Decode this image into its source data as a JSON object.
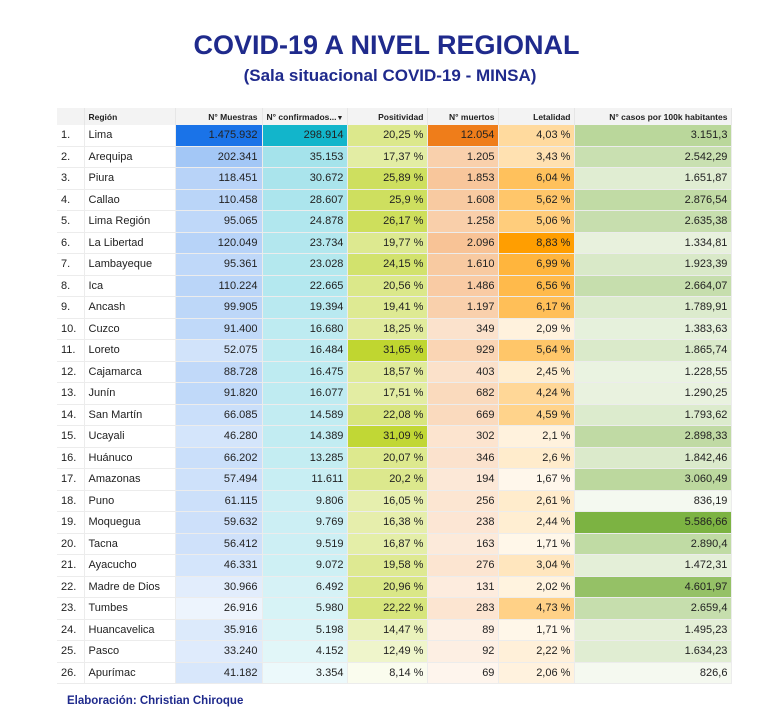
{
  "title": "COVID-19 A NIVEL REGIONAL",
  "subtitle": "(Sala situacional COVID-19 - MINSA)",
  "headers": {
    "region": "Región",
    "muestras": "N° Muestras",
    "confirmados": "N° confirmados...",
    "positividad": "Positividad",
    "muertos": "N° muertos",
    "letalidad": "Letalidad",
    "casos100k": "N° casos por 100k habitantes"
  },
  "rows": [
    {
      "num": "1.",
      "region": "Lima",
      "muestras": "1.475.932",
      "confirmados": "298.914",
      "positividad": "20,25 %",
      "muertos": "12.054",
      "letalidad": "4,03 %",
      "casos100k": "3.151,3"
    },
    {
      "num": "2.",
      "region": "Arequipa",
      "muestras": "202.341",
      "confirmados": "35.153",
      "positividad": "17,37 %",
      "muertos": "1.205",
      "letalidad": "3,43 %",
      "casos100k": "2.542,29"
    },
    {
      "num": "3.",
      "region": "Piura",
      "muestras": "118.451",
      "confirmados": "30.672",
      "positividad": "25,89 %",
      "muertos": "1.853",
      "letalidad": "6,04 %",
      "casos100k": "1.651,87"
    },
    {
      "num": "4.",
      "region": "Callao",
      "muestras": "110.458",
      "confirmados": "28.607",
      "positividad": "25,9 %",
      "muertos": "1.608",
      "letalidad": "5,62 %",
      "casos100k": "2.876,54"
    },
    {
      "num": "5.",
      "region": "Lima Región",
      "muestras": "95.065",
      "confirmados": "24.878",
      "positividad": "26,17 %",
      "muertos": "1.258",
      "letalidad": "5,06 %",
      "casos100k": "2.635,38"
    },
    {
      "num": "6.",
      "region": "La Libertad",
      "muestras": "120.049",
      "confirmados": "23.734",
      "positividad": "19,77 %",
      "muertos": "2.096",
      "letalidad": "8,83 %",
      "casos100k": "1.334,81"
    },
    {
      "num": "7.",
      "region": "Lambayeque",
      "muestras": "95.361",
      "confirmados": "23.028",
      "positividad": "24,15 %",
      "muertos": "1.610",
      "letalidad": "6,99 %",
      "casos100k": "1.923,39"
    },
    {
      "num": "8.",
      "region": "Ica",
      "muestras": "110.224",
      "confirmados": "22.665",
      "positividad": "20,56 %",
      "muertos": "1.486",
      "letalidad": "6,56 %",
      "casos100k": "2.664,07"
    },
    {
      "num": "9.",
      "region": "Ancash",
      "muestras": "99.905",
      "confirmados": "19.394",
      "positividad": "19,41 %",
      "muertos": "1.197",
      "letalidad": "6,17 %",
      "casos100k": "1.789,91"
    },
    {
      "num": "10.",
      "region": "Cuzco",
      "muestras": "91.400",
      "confirmados": "16.680",
      "positividad": "18,25 %",
      "muertos": "349",
      "letalidad": "2,09 %",
      "casos100k": "1.383,63"
    },
    {
      "num": "11.",
      "region": "Loreto",
      "muestras": "52.075",
      "confirmados": "16.484",
      "positividad": "31,65 %",
      "muertos": "929",
      "letalidad": "5,64 %",
      "casos100k": "1.865,74"
    },
    {
      "num": "12.",
      "region": "Cajamarca",
      "muestras": "88.728",
      "confirmados": "16.475",
      "positividad": "18,57 %",
      "muertos": "403",
      "letalidad": "2,45 %",
      "casos100k": "1.228,55"
    },
    {
      "num": "13.",
      "region": "Junín",
      "muestras": "91.820",
      "confirmados": "16.077",
      "positividad": "17,51 %",
      "muertos": "682",
      "letalidad": "4,24 %",
      "casos100k": "1.290,25"
    },
    {
      "num": "14.",
      "region": "San Martín",
      "muestras": "66.085",
      "confirmados": "14.589",
      "positividad": "22,08 %",
      "muertos": "669",
      "letalidad": "4,59 %",
      "casos100k": "1.793,62"
    },
    {
      "num": "15.",
      "region": "Ucayali",
      "muestras": "46.280",
      "confirmados": "14.389",
      "positividad": "31,09 %",
      "muertos": "302",
      "letalidad": "2,1 %",
      "casos100k": "2.898,33"
    },
    {
      "num": "16.",
      "region": "Huánuco",
      "muestras": "66.202",
      "confirmados": "13.285",
      "positividad": "20,07 %",
      "muertos": "346",
      "letalidad": "2,6 %",
      "casos100k": "1.842,46"
    },
    {
      "num": "17.",
      "region": "Amazonas",
      "muestras": "57.494",
      "confirmados": "11.611",
      "positividad": "20,2 %",
      "muertos": "194",
      "letalidad": "1,67 %",
      "casos100k": "3.060,49"
    },
    {
      "num": "18.",
      "region": "Puno",
      "muestras": "61.115",
      "confirmados": "9.806",
      "positividad": "16,05 %",
      "muertos": "256",
      "letalidad": "2,61 %",
      "casos100k": "836,19"
    },
    {
      "num": "19.",
      "region": "Moquegua",
      "muestras": "59.632",
      "confirmados": "9.769",
      "positividad": "16,38 %",
      "muertos": "238",
      "letalidad": "2,44 %",
      "casos100k": "5.586,66"
    },
    {
      "num": "20.",
      "region": "Tacna",
      "muestras": "56.412",
      "confirmados": "9.519",
      "positividad": "16,87 %",
      "muertos": "163",
      "letalidad": "1,71 %",
      "casos100k": "2.890,4"
    },
    {
      "num": "21.",
      "region": "Ayacucho",
      "muestras": "46.331",
      "confirmados": "9.072",
      "positividad": "19,58 %",
      "muertos": "276",
      "letalidad": "3,04 %",
      "casos100k": "1.472,31"
    },
    {
      "num": "22.",
      "region": "Madre de Dios",
      "muestras": "30.966",
      "confirmados": "6.492",
      "positividad": "20,96 %",
      "muertos": "131",
      "letalidad": "2,02 %",
      "casos100k": "4.601,97"
    },
    {
      "num": "23.",
      "region": "Tumbes",
      "muestras": "26.916",
      "confirmados": "5.980",
      "positividad": "22,22 %",
      "muertos": "283",
      "letalidad": "4,73 %",
      "casos100k": "2.659,4"
    },
    {
      "num": "24.",
      "region": "Huancavelica",
      "muestras": "35.916",
      "confirmados": "5.198",
      "positividad": "14,47 %",
      "muertos": "89",
      "letalidad": "1,71 %",
      "casos100k": "1.495,23"
    },
    {
      "num": "25.",
      "region": "Pasco",
      "muestras": "33.240",
      "confirmados": "4.152",
      "positividad": "12,49 %",
      "muertos": "92",
      "letalidad": "2,22 %",
      "casos100k": "1.634,23"
    },
    {
      "num": "26.",
      "region": "Apurímac",
      "muestras": "41.182",
      "confirmados": "3.354",
      "positividad": "8,14 %",
      "muertos": "69",
      "letalidad": "2,06 %",
      "casos100k": "826,6"
    }
  ],
  "footer": "Elaboración: Christian Chiroque",
  "colors": {
    "title": "#1f2a8c",
    "muestras_max": "#1a73e8",
    "confirmados_max": "#12b5cb",
    "positividad_max": "#c0d630",
    "muertos_max": "#ef7d1a",
    "letalidad_max": "#ff9e01",
    "casos100k_max": "#7cb342"
  }
}
